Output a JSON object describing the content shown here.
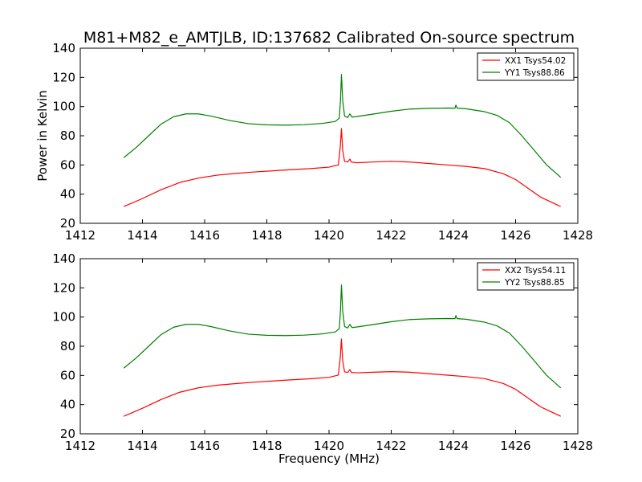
{
  "figure": {
    "title": "M81+M82_e_AMTJLB, ID:137682 Calibrated On-source spectrum",
    "colors": {
      "red": "#ff0000",
      "green": "#008000"
    }
  },
  "chart_data": [
    {
      "type": "line",
      "title": "M81+M82_e_AMTJLB, ID:137682 Calibrated On-source spectrum",
      "xlabel": "",
      "ylabel": "Power in Kelvin",
      "xlim": [
        1412,
        1428
      ],
      "ylim": [
        20,
        140
      ],
      "xticks": [
        1412,
        1414,
        1416,
        1418,
        1420,
        1422,
        1424,
        1426,
        1428
      ],
      "yticks": [
        20,
        40,
        60,
        80,
        100,
        120,
        140
      ],
      "grid": false,
      "legend": "top-right",
      "series": [
        {
          "name": "XX1 Tsys54.02",
          "color": "#ff0000",
          "points": [
            [
              1413.4,
              31.5
            ],
            [
              1414.0,
              37
            ],
            [
              1414.6,
              43
            ],
            [
              1415.2,
              48
            ],
            [
              1415.8,
              51
            ],
            [
              1416.4,
              53
            ],
            [
              1417.0,
              54.2
            ],
            [
              1417.6,
              55.2
            ],
            [
              1418.2,
              56
            ],
            [
              1418.8,
              56.8
            ],
            [
              1419.4,
              57.5
            ],
            [
              1420.0,
              58.5
            ],
            [
              1420.3,
              60
            ],
            [
              1420.36,
              72
            ],
            [
              1420.4,
              85
            ],
            [
              1420.44,
              70
            ],
            [
              1420.5,
              62.5
            ],
            [
              1420.6,
              62
            ],
            [
              1420.67,
              64
            ],
            [
              1420.72,
              62
            ],
            [
              1420.9,
              61.5
            ],
            [
              1421.4,
              62
            ],
            [
              1422.0,
              62.5
            ],
            [
              1422.6,
              62
            ],
            [
              1423.2,
              61
            ],
            [
              1423.8,
              60
            ],
            [
              1424.4,
              59
            ],
            [
              1425.0,
              57.5
            ],
            [
              1425.6,
              54
            ],
            [
              1426.0,
              50
            ],
            [
              1426.4,
              44
            ],
            [
              1426.8,
              38
            ],
            [
              1427.2,
              34
            ],
            [
              1427.45,
              31.5
            ]
          ]
        },
        {
          "name": "YY1 Tsys88.86",
          "color": "#008000",
          "points": [
            [
              1413.4,
              65
            ],
            [
              1413.8,
              72
            ],
            [
              1414.2,
              80
            ],
            [
              1414.6,
              88
            ],
            [
              1415.0,
              93
            ],
            [
              1415.4,
              95
            ],
            [
              1415.8,
              95
            ],
            [
              1416.2,
              93.5
            ],
            [
              1416.8,
              90.5
            ],
            [
              1417.4,
              88.3
            ],
            [
              1418.0,
              87.5
            ],
            [
              1418.6,
              87.3
            ],
            [
              1419.2,
              87.6
            ],
            [
              1419.8,
              88.5
            ],
            [
              1420.2,
              89.8
            ],
            [
              1420.33,
              92
            ],
            [
              1420.37,
              105
            ],
            [
              1420.4,
              122
            ],
            [
              1420.44,
              104
            ],
            [
              1420.5,
              93.5
            ],
            [
              1420.6,
              92.5
            ],
            [
              1420.67,
              95
            ],
            [
              1420.74,
              92.8
            ],
            [
              1420.9,
              93.2
            ],
            [
              1421.4,
              94.8
            ],
            [
              1422.0,
              96.8
            ],
            [
              1422.6,
              98.3
            ],
            [
              1423.2,
              98.8
            ],
            [
              1423.8,
              99
            ],
            [
              1424.05,
              98.9
            ],
            [
              1424.08,
              101
            ],
            [
              1424.12,
              98.9
            ],
            [
              1424.4,
              98.5
            ],
            [
              1425.0,
              96.5
            ],
            [
              1425.4,
              94
            ],
            [
              1425.8,
              89
            ],
            [
              1426.2,
              80
            ],
            [
              1426.6,
              70
            ],
            [
              1427.0,
              60
            ],
            [
              1427.45,
              51.5
            ]
          ]
        }
      ]
    },
    {
      "type": "line",
      "title": "",
      "xlabel": "Frequency (MHz)",
      "ylabel": "",
      "xlim": [
        1412,
        1428
      ],
      "ylim": [
        20,
        140
      ],
      "xticks": [
        1412,
        1414,
        1416,
        1418,
        1420,
        1422,
        1424,
        1426,
        1428
      ],
      "yticks": [
        20,
        40,
        60,
        80,
        100,
        120,
        140
      ],
      "grid": false,
      "legend": "top-right",
      "series": [
        {
          "name": "XX2 Tsys54.11",
          "color": "#ff0000",
          "points": [
            [
              1413.4,
              32
            ],
            [
              1414.0,
              37.5
            ],
            [
              1414.6,
              43.5
            ],
            [
              1415.2,
              48.5
            ],
            [
              1415.8,
              51.5
            ],
            [
              1416.4,
              53.3
            ],
            [
              1417.0,
              54.4
            ],
            [
              1417.6,
              55.4
            ],
            [
              1418.2,
              56.2
            ],
            [
              1418.8,
              57
            ],
            [
              1419.4,
              57.7
            ],
            [
              1420.0,
              58.7
            ],
            [
              1420.3,
              60.2
            ],
            [
              1420.36,
              72
            ],
            [
              1420.4,
              85
            ],
            [
              1420.44,
              70
            ],
            [
              1420.5,
              62.5
            ],
            [
              1420.6,
              62
            ],
            [
              1420.67,
              64
            ],
            [
              1420.72,
              62
            ],
            [
              1420.9,
              61.8
            ],
            [
              1421.4,
              62.2
            ],
            [
              1422.0,
              62.6
            ],
            [
              1422.6,
              62.2
            ],
            [
              1423.2,
              61.2
            ],
            [
              1423.8,
              60.2
            ],
            [
              1424.4,
              59.2
            ],
            [
              1425.0,
              57.8
            ],
            [
              1425.6,
              54.5
            ],
            [
              1426.0,
              50.5
            ],
            [
              1426.4,
              44.5
            ],
            [
              1426.8,
              38.5
            ],
            [
              1427.2,
              34.5
            ],
            [
              1427.45,
              32
            ]
          ]
        },
        {
          "name": "YY2 Tsys88.85",
          "color": "#008000",
          "points": [
            [
              1413.4,
              65
            ],
            [
              1413.8,
              72
            ],
            [
              1414.2,
              80
            ],
            [
              1414.6,
              88
            ],
            [
              1415.0,
              93
            ],
            [
              1415.4,
              95
            ],
            [
              1415.8,
              95
            ],
            [
              1416.2,
              93.5
            ],
            [
              1416.8,
              90.5
            ],
            [
              1417.4,
              88.3
            ],
            [
              1418.0,
              87.5
            ],
            [
              1418.6,
              87.3
            ],
            [
              1419.2,
              87.6
            ],
            [
              1419.8,
              88.5
            ],
            [
              1420.2,
              89.8
            ],
            [
              1420.33,
              92
            ],
            [
              1420.37,
              105
            ],
            [
              1420.4,
              122
            ],
            [
              1420.44,
              104
            ],
            [
              1420.5,
              93.5
            ],
            [
              1420.6,
              92.5
            ],
            [
              1420.67,
              95
            ],
            [
              1420.74,
              92.8
            ],
            [
              1420.9,
              93.2
            ],
            [
              1421.4,
              94.8
            ],
            [
              1422.0,
              96.8
            ],
            [
              1422.6,
              98.3
            ],
            [
              1423.2,
              98.8
            ],
            [
              1423.8,
              99
            ],
            [
              1424.05,
              98.9
            ],
            [
              1424.08,
              101
            ],
            [
              1424.12,
              98.9
            ],
            [
              1424.4,
              98.5
            ],
            [
              1425.0,
              96.5
            ],
            [
              1425.4,
              94
            ],
            [
              1425.8,
              89
            ],
            [
              1426.2,
              80
            ],
            [
              1426.6,
              70
            ],
            [
              1427.0,
              60
            ],
            [
              1427.45,
              51.5
            ]
          ]
        }
      ]
    }
  ]
}
